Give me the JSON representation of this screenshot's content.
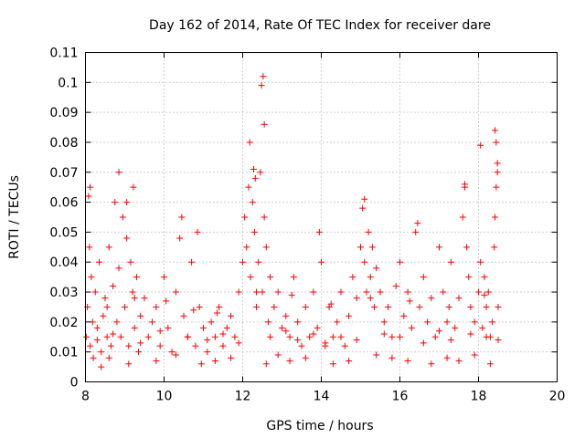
{
  "chart_data": {
    "type": "scatter",
    "title": "Day 162 of 2014, Rate Of TEC Index for receiver dare",
    "xlabel": "GPS time / hours",
    "ylabel": "ROTI / TECUs",
    "xlim": [
      8,
      20
    ],
    "ylim": [
      0,
      0.11
    ],
    "xticks": [
      "8",
      "10",
      "12",
      "14",
      "16",
      "18",
      "20"
    ],
    "yticks": [
      "0",
      "0.01",
      "0.02",
      "0.03",
      "0.04",
      "0.05",
      "0.06",
      "0.07",
      "0.08",
      "0.09",
      "0.1",
      "0.11"
    ],
    "grid": true,
    "marker": "+",
    "color": "#ff0000",
    "series": [
      {
        "name": "ROTI",
        "x": [
          8.02,
          8.05,
          8.08,
          8.1,
          8.12,
          8.15,
          8.18,
          8.2,
          8.25,
          8.3,
          8.35,
          8.4,
          8.45,
          8.5,
          8.55,
          8.6,
          8.65,
          8.7,
          8.75,
          8.8,
          8.85,
          8.9,
          8.95,
          9.0,
          9.05,
          9.1,
          9.15,
          9.2,
          9.25,
          9.3,
          9.35,
          9.4,
          9.5,
          9.6,
          9.7,
          9.8,
          9.9,
          10.0,
          10.1,
          10.2,
          10.3,
          10.4,
          10.5,
          10.6,
          10.7,
          10.8,
          10.9,
          11.0,
          11.1,
          11.2,
          11.3,
          11.4,
          11.5,
          11.6,
          11.7,
          11.8,
          11.9,
          12.0,
          12.05,
          12.1,
          12.15,
          12.2,
          12.25,
          12.3,
          12.35,
          12.4,
          12.45,
          12.5,
          12.55,
          12.6,
          12.65,
          12.7,
          12.8,
          12.9,
          13.0,
          13.1,
          13.2,
          13.3,
          13.4,
          13.5,
          13.6,
          13.7,
          13.8,
          13.9,
          14.0,
          14.1,
          14.2,
          14.3,
          14.4,
          14.5,
          14.6,
          14.7,
          14.8,
          14.9,
          15.0,
          15.05,
          15.1,
          15.15,
          15.2,
          15.25,
          15.3,
          15.35,
          15.4,
          15.5,
          15.6,
          15.7,
          15.8,
          15.9,
          16.0,
          16.1,
          16.2,
          16.3,
          16.4,
          16.5,
          16.6,
          16.7,
          16.8,
          16.9,
          17.0,
          17.1,
          17.2,
          17.3,
          17.4,
          17.5,
          17.6,
          17.65,
          17.7,
          17.75,
          17.8,
          17.9,
          18.0,
          18.05,
          18.1,
          18.15,
          18.2,
          18.25,
          18.3,
          18.35,
          18.4,
          18.42,
          18.45,
          18.48,
          18.5,
          8.12,
          8.85,
          9.05,
          9.22,
          10.45,
          10.85,
          12.18,
          12.28,
          12.32,
          12.48,
          12.52,
          12.55,
          13.95,
          15.1,
          16.45,
          17.65,
          18.05,
          18.42,
          18.45,
          18.48,
          8.4,
          8.6,
          9.1,
          9.8,
          10.3,
          10.95,
          11.3,
          11.7,
          12.6,
          12.9,
          13.2,
          13.6,
          14.3,
          14.7,
          15.4,
          15.8,
          16.2,
          16.8,
          17.2,
          17.5,
          17.9,
          18.3,
          8.3,
          8.7,
          9.4,
          9.9,
          10.6,
          11.1,
          11.5,
          11.9,
          12.7,
          13.1,
          13.4,
          13.8,
          14.1,
          14.5,
          14.9,
          15.6,
          16.0,
          16.6,
          17.0,
          17.3,
          17.8,
          18.2,
          18.5,
          8.55,
          9.25,
          10.05,
          10.75,
          11.35,
          12.35,
          13.25,
          14.25,
          15.25,
          16.25,
          17.25,
          18.15
        ],
        "y": [
          0.015,
          0.025,
          0.062,
          0.045,
          0.012,
          0.035,
          0.02,
          0.008,
          0.03,
          0.018,
          0.04,
          0.01,
          0.022,
          0.028,
          0.015,
          0.045,
          0.012,
          0.032,
          0.06,
          0.02,
          0.038,
          0.015,
          0.055,
          0.025,
          0.048,
          0.012,
          0.04,
          0.03,
          0.018,
          0.035,
          0.01,
          0.022,
          0.028,
          0.015,
          0.02,
          0.025,
          0.012,
          0.035,
          0.018,
          0.01,
          0.03,
          0.048,
          0.022,
          0.015,
          0.04,
          0.012,
          0.025,
          0.018,
          0.01,
          0.02,
          0.015,
          0.025,
          0.012,
          0.018,
          0.022,
          0.015,
          0.03,
          0.04,
          0.055,
          0.045,
          0.065,
          0.035,
          0.06,
          0.05,
          0.025,
          0.04,
          0.07,
          0.03,
          0.055,
          0.045,
          0.02,
          0.035,
          0.025,
          0.03,
          0.018,
          0.022,
          0.015,
          0.035,
          0.02,
          0.012,
          0.025,
          0.015,
          0.03,
          0.018,
          0.04,
          0.012,
          0.025,
          0.015,
          0.02,
          0.03,
          0.012,
          0.022,
          0.035,
          0.028,
          0.045,
          0.058,
          0.04,
          0.03,
          0.05,
          0.035,
          0.045,
          0.025,
          0.038,
          0.03,
          0.02,
          0.025,
          0.015,
          0.032,
          0.04,
          0.022,
          0.03,
          0.018,
          0.05,
          0.025,
          0.035,
          0.02,
          0.028,
          0.015,
          0.045,
          0.03,
          0.02,
          0.04,
          0.018,
          0.028,
          0.055,
          0.065,
          0.045,
          0.035,
          0.025,
          0.02,
          0.03,
          0.04,
          0.018,
          0.035,
          0.025,
          0.03,
          0.015,
          0.02,
          0.045,
          0.055,
          0.065,
          0.07,
          0.025,
          0.065,
          0.07,
          0.06,
          0.065,
          0.055,
          0.05,
          0.08,
          0.071,
          0.068,
          0.099,
          0.102,
          0.086,
          0.05,
          0.061,
          0.053,
          0.066,
          0.079,
          0.084,
          0.08,
          0.073,
          0.005,
          0.008,
          0.006,
          0.007,
          0.009,
          0.006,
          0.007,
          0.008,
          0.006,
          0.009,
          0.007,
          0.008,
          0.006,
          0.007,
          0.009,
          0.008,
          0.007,
          0.006,
          0.008,
          0.007,
          0.009,
          0.006,
          0.014,
          0.016,
          0.013,
          0.017,
          0.015,
          0.014,
          0.016,
          0.013,
          0.015,
          0.017,
          0.014,
          0.016,
          0.013,
          0.015,
          0.014,
          0.016,
          0.015,
          0.013,
          0.017,
          0.014,
          0.016,
          0.015,
          0.014,
          0.025,
          0.028,
          0.027,
          0.024,
          0.023,
          0.03,
          0.029,
          0.026,
          0.028,
          0.027,
          0.025,
          0.029
        ]
      }
    ]
  }
}
